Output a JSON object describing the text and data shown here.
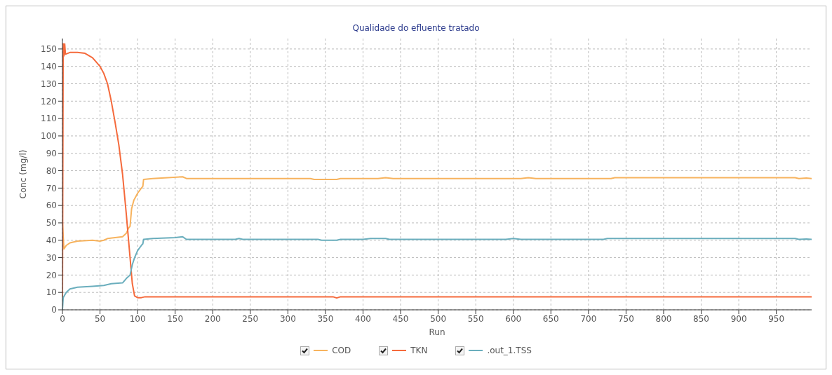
{
  "chart_data": {
    "type": "line",
    "title": "Qualidade do efluente tratado",
    "xlabel": "Run",
    "ylabel": "Conc (mg/l)",
    "xlim": [
      0,
      997
    ],
    "xticks": [
      0,
      50,
      100,
      150,
      200,
      250,
      300,
      350,
      400,
      450,
      500,
      550,
      600,
      650,
      700,
      750,
      800,
      850,
      900,
      950
    ],
    "ylim": [
      0,
      156
    ],
    "yticks": [
      0,
      10,
      20,
      30,
      40,
      50,
      60,
      70,
      80,
      90,
      100,
      110,
      120,
      130,
      140,
      150
    ],
    "grid": true,
    "legend": "bottom",
    "marker": "none",
    "line_style": "solid",
    "series": [
      {
        "name": "COD",
        "color": "#f7b35e",
        "x": [
          0,
          2,
          5,
          10,
          20,
          40,
          50,
          55,
          60,
          70,
          80,
          85,
          88,
          90,
          92,
          95,
          100,
          105,
          107,
          108,
          120,
          140,
          160,
          165,
          200,
          330,
          335,
          365,
          370,
          420,
          430,
          440,
          610,
          620,
          630,
          730,
          735,
          975,
          980,
          990,
          997
        ],
        "values": [
          50,
          35,
          37,
          38.5,
          39.5,
          40,
          39.5,
          40,
          41,
          41.5,
          42,
          44,
          47,
          48,
          58,
          63,
          67,
          70,
          71,
          75,
          75.5,
          76,
          76.5,
          75.5,
          75.5,
          75.5,
          75,
          75,
          75.5,
          75.5,
          76,
          75.5,
          75.5,
          76,
          75.5,
          75.5,
          76,
          76,
          75.5,
          75.8,
          75.5
        ]
      },
      {
        "name": "TKN",
        "color": "#f56a3c",
        "x": [
          0,
          1,
          2,
          3,
          4,
          10,
          20,
          30,
          40,
          50,
          55,
          60,
          65,
          70,
          75,
          80,
          85,
          90,
          93,
          96,
          100,
          105,
          110,
          360,
          365,
          370,
          997
        ],
        "values": [
          0,
          153,
          146,
          153,
          147,
          148,
          148,
          147.5,
          145,
          140,
          136,
          130,
          120,
          108,
          95,
          78,
          55,
          30,
          15,
          8,
          7,
          7,
          7.5,
          7.5,
          6.8,
          7.5,
          7.5
        ]
      },
      {
        "name": ".out_1.TSS",
        "color": "#6aaebd",
        "x": [
          0,
          1,
          5,
          10,
          20,
          40,
          55,
          65,
          80,
          85,
          90,
          93,
          96,
          100,
          105,
          107,
          108,
          120,
          150,
          160,
          165,
          230,
          235,
          240,
          340,
          345,
          365,
          370,
          400,
          410,
          430,
          435,
          590,
          600,
          610,
          720,
          725,
          975,
          980,
          990,
          997
        ],
        "values": [
          0,
          7,
          10,
          12,
          13,
          13.5,
          14,
          15,
          15.5,
          18,
          20,
          26,
          30,
          34,
          37,
          38,
          40.5,
          41,
          41.5,
          42,
          40.5,
          40.5,
          41,
          40.5,
          40.5,
          40,
          40,
          40.5,
          40.5,
          41,
          41,
          40.5,
          40.5,
          41,
          40.5,
          40.5,
          41,
          41,
          40.5,
          40.7,
          40.5
        ]
      }
    ]
  }
}
